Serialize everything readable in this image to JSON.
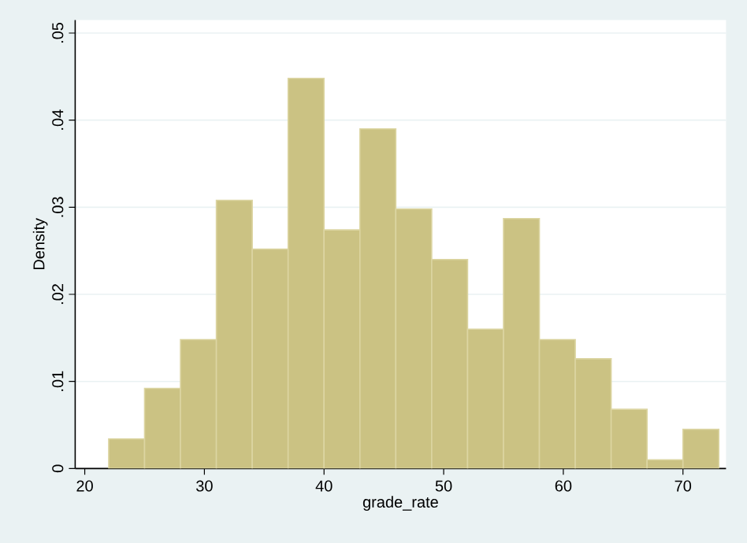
{
  "chart_data": {
    "type": "histogram",
    "xlabel": "grade_rate",
    "ylabel": "Density",
    "bins": [
      22,
      25,
      28,
      31,
      34,
      37,
      40,
      43,
      46,
      49,
      52,
      55,
      58,
      61,
      64,
      67,
      70,
      73
    ],
    "values": [
      0.0034,
      0.0092,
      0.0148,
      0.0308,
      0.0252,
      0.0448,
      0.0274,
      0.039,
      0.0298,
      0.024,
      0.016,
      0.0287,
      0.0148,
      0.0126,
      0.0068,
      0.001,
      0.0045
    ],
    "color": "#cbc283",
    "xlim": [
      19.2,
      73.6
    ],
    "ylim": [
      0,
      0.0515
    ],
    "xticks": [
      20,
      30,
      40,
      50,
      60,
      70
    ],
    "yticks": [
      0,
      {
        "value": 0.01,
        "label": ".01"
      },
      {
        "value": 0.02,
        "label": ".02"
      },
      {
        "value": 0.03,
        "label": ".03"
      },
      {
        "value": 0.04,
        "label": ".04"
      },
      {
        "value": 0.05,
        "label": ".05"
      }
    ],
    "grid": "y"
  }
}
